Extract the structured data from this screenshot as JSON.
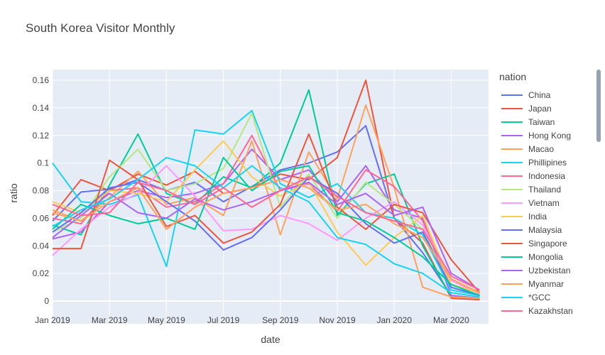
{
  "title": "South Korea Visitor Monthly",
  "chart_data": {
    "type": "line",
    "title": "South Korea Visitor Monthly",
    "xlabel": "date",
    "ylabel": "ratio",
    "ylim": [
      0,
      0.16
    ],
    "grid": true,
    "legend_title": "nation",
    "legend_placement": "right",
    "x": [
      "2019-01",
      "2019-02",
      "2019-03",
      "2019-04",
      "2019-05",
      "2019-06",
      "2019-07",
      "2019-08",
      "2019-09",
      "2019-10",
      "2019-11",
      "2019-12",
      "2020-01",
      "2020-02",
      "2020-03",
      "2020-04"
    ],
    "x_ticks": [
      "Jan 2019",
      "Mar 2019",
      "May 2019",
      "Jul 2019",
      "Sep 2019",
      "Nov 2019",
      "Jan 2020",
      "Mar 2020"
    ],
    "y_ticks": [
      "0",
      "0.02",
      "0.04",
      "0.06",
      "0.08",
      "0.1",
      "0.12",
      "0.14",
      "0.16"
    ],
    "series": [
      {
        "name": "China",
        "color": "#636efa",
        "values": [
          0.058,
          0.079,
          0.081,
          0.088,
          0.08,
          0.086,
          0.072,
          0.083,
          0.095,
          0.1,
          0.108,
          0.127,
          0.06,
          0.035,
          0.004,
          0.002
        ]
      },
      {
        "name": "Japan",
        "color": "#ef553b",
        "values": [
          0.062,
          0.088,
          0.08,
          0.092,
          0.084,
          0.094,
          0.078,
          0.082,
          0.092,
          0.088,
          0.104,
          0.16,
          0.06,
          0.042,
          0.002,
          0.001
        ]
      },
      {
        "name": "Taiwan",
        "color": "#00cc96",
        "values": [
          0.055,
          0.048,
          0.084,
          0.121,
          0.078,
          0.07,
          0.09,
          0.082,
          0.1,
          0.153,
          0.062,
          0.085,
          0.092,
          0.04,
          0.003,
          0.002
        ]
      },
      {
        "name": "Hong Kong",
        "color": "#ab63fa",
        "values": [
          0.045,
          0.05,
          0.072,
          0.08,
          0.075,
          0.078,
          0.085,
          0.11,
          0.088,
          0.095,
          0.072,
          0.098,
          0.066,
          0.06,
          0.004,
          0.002
        ]
      },
      {
        "name": "Macao",
        "color": "#ffa15a",
        "values": [
          0.066,
          0.058,
          0.075,
          0.094,
          0.07,
          0.075,
          0.062,
          0.116,
          0.048,
          0.108,
          0.074,
          0.142,
          0.082,
          0.01,
          0.003,
          0.002
        ]
      },
      {
        "name": "Phillipines",
        "color": "#19d3f3",
        "values": [
          0.1,
          0.072,
          0.07,
          0.077,
          0.025,
          0.124,
          0.121,
          0.138,
          0.085,
          0.075,
          0.085,
          0.064,
          0.06,
          0.048,
          0.008,
          0.004
        ]
      },
      {
        "name": "Indonesia",
        "color": "#ff6692",
        "values": [
          0.06,
          0.056,
          0.08,
          0.082,
          0.068,
          0.072,
          0.085,
          0.12,
          0.08,
          0.085,
          0.065,
          0.095,
          0.083,
          0.058,
          0.012,
          0.006
        ]
      },
      {
        "name": "Thailand",
        "color": "#b6e880",
        "values": [
          0.05,
          0.06,
          0.09,
          0.11,
          0.08,
          0.085,
          0.096,
          0.136,
          0.068,
          0.092,
          0.06,
          0.086,
          0.07,
          0.052,
          0.01,
          0.004
        ]
      },
      {
        "name": "Vietnam",
        "color": "#ff97ff",
        "values": [
          0.033,
          0.052,
          0.068,
          0.078,
          0.098,
          0.076,
          0.051,
          0.052,
          0.062,
          0.056,
          0.044,
          0.06,
          0.072,
          0.055,
          0.015,
          0.005
        ]
      },
      {
        "name": "India",
        "color": "#fecb52",
        "values": [
          0.072,
          0.064,
          0.08,
          0.078,
          0.072,
          0.095,
          0.116,
          0.09,
          0.076,
          0.086,
          0.05,
          0.026,
          0.046,
          0.062,
          0.012,
          0.006
        ]
      },
      {
        "name": "Malaysia",
        "color": "#636efa",
        "values": [
          0.05,
          0.064,
          0.082,
          0.086,
          0.072,
          0.058,
          0.037,
          0.046,
          0.066,
          0.09,
          0.078,
          0.056,
          0.042,
          0.05,
          0.01,
          0.004
        ]
      },
      {
        "name": "Singapore",
        "color": "#ef553b",
        "values": [
          0.038,
          0.038,
          0.102,
          0.088,
          0.054,
          0.062,
          0.042,
          0.05,
          0.07,
          0.121,
          0.068,
          0.052,
          0.07,
          0.064,
          0.03,
          0.006
        ]
      },
      {
        "name": "Mongolia",
        "color": "#00cc96",
        "values": [
          0.052,
          0.07,
          0.062,
          0.056,
          0.06,
          0.052,
          0.104,
          0.08,
          0.094,
          0.098,
          0.064,
          0.058,
          0.046,
          0.032,
          0.012,
          0.004
        ]
      },
      {
        "name": "Uzbekistan",
        "color": "#ab63fa",
        "values": [
          0.046,
          0.062,
          0.078,
          0.064,
          0.06,
          0.074,
          0.066,
          0.072,
          0.08,
          0.086,
          0.07,
          0.078,
          0.062,
          0.068,
          0.02,
          0.008
        ]
      },
      {
        "name": "Myanmar",
        "color": "#ffa15a",
        "values": [
          0.064,
          0.058,
          0.072,
          0.082,
          0.052,
          0.068,
          0.078,
          0.082,
          0.088,
          0.082,
          0.066,
          0.07,
          0.056,
          0.046,
          0.016,
          0.006
        ]
      },
      {
        "name": "*GCC",
        "color": "#19d3f3",
        "values": [
          0.054,
          0.066,
          0.074,
          0.088,
          0.104,
          0.098,
          0.082,
          0.098,
          0.082,
          0.072,
          0.046,
          0.041,
          0.027,
          0.02,
          0.006,
          0.003
        ]
      },
      {
        "name": "Kazakhstan",
        "color": "#ff6692",
        "values": [
          0.07,
          0.062,
          0.064,
          0.086,
          0.08,
          0.07,
          0.082,
          0.068,
          0.08,
          0.09,
          0.076,
          0.064,
          0.058,
          0.052,
          0.018,
          0.008
        ]
      }
    ]
  }
}
